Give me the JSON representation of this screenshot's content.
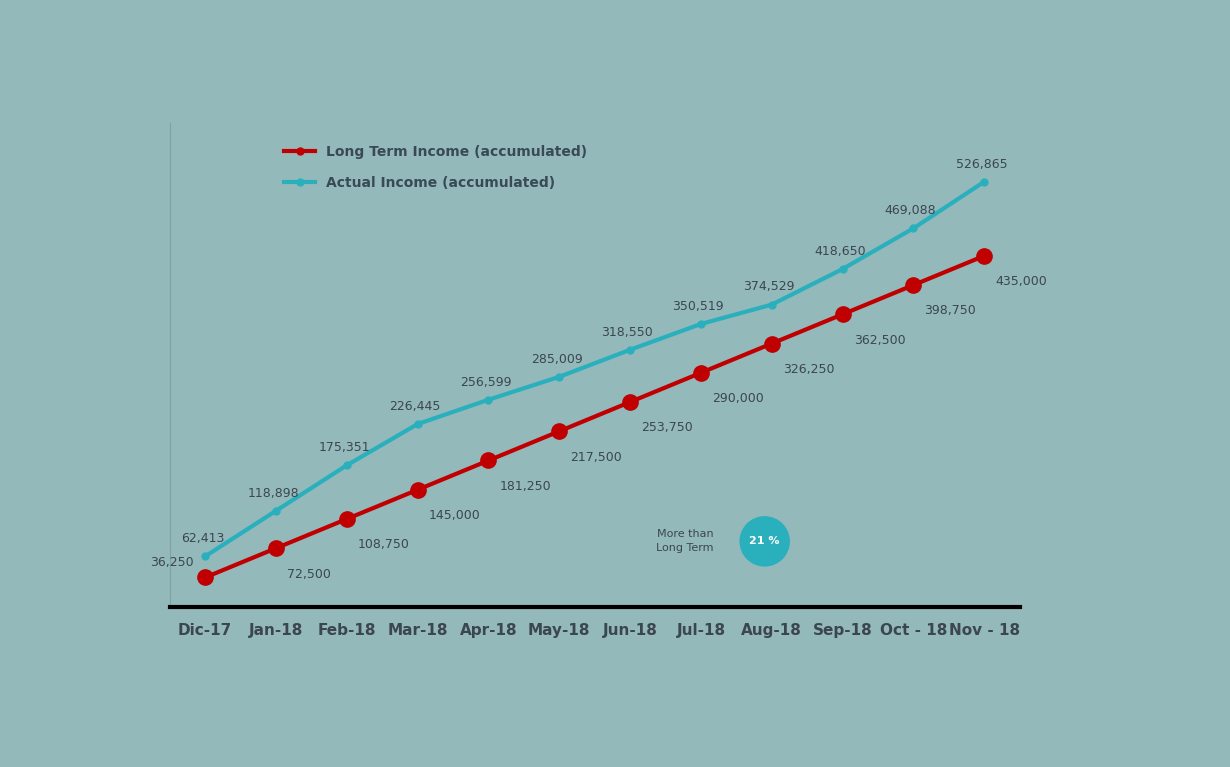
{
  "chart_data": {
    "type": "line",
    "categories": [
      "Dic-17",
      "Jan-18",
      "Feb-18",
      "Mar-18",
      "Apr-18",
      "May-18",
      "Jun-18",
      "Jul-18",
      "Aug-18",
      "Sep-18",
      "Oct - 18",
      "Nov - 18"
    ],
    "series": [
      {
        "name": "Long Term Income (accumulated)",
        "color": "#c00000",
        "marker": "o",
        "values": [
          36250,
          72500,
          108750,
          145000,
          181250,
          217500,
          253750,
          290000,
          326250,
          362500,
          398750,
          435000
        ],
        "value_labels": [
          "36,250",
          "72,500",
          "108,750",
          "145,000",
          "181,250",
          "217,500",
          "253,750",
          "290,000",
          "326,250",
          "362,500",
          "398,750",
          "435,000"
        ]
      },
      {
        "name": "Actual Income (accumulated)",
        "color": "#2ab0bd",
        "marker": "o",
        "values": [
          62413,
          118898,
          175351,
          226445,
          256599,
          285009,
          318550,
          350519,
          374529,
          418650,
          469088,
          526865
        ],
        "value_labels": [
          "62,413",
          "118,898",
          "175,351",
          "226,445",
          "256,599",
          "285,009",
          "318,550",
          "350,519",
          "374,529",
          "418,650",
          "469,088",
          "526,865"
        ]
      }
    ],
    "ylim": [
      0,
      600000
    ],
    "tick_labels": "x",
    "data_labels": true,
    "legend": "upper left",
    "annotations": [
      {
        "text": "More than\nLong Term"
      },
      {
        "text": "21 %"
      }
    ]
  }
}
